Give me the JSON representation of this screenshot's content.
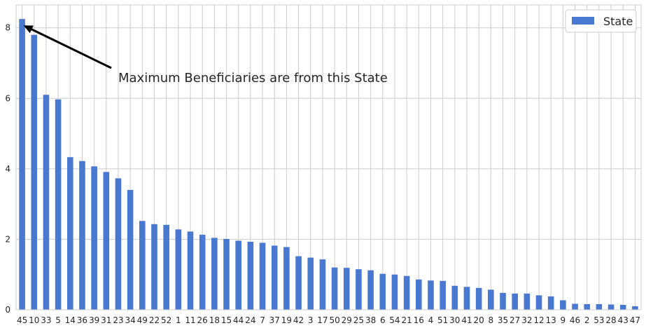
{
  "chart_data": {
    "type": "bar",
    "categories": [
      "45",
      "10",
      "33",
      "5",
      "14",
      "36",
      "39",
      "31",
      "23",
      "34",
      "49",
      "22",
      "52",
      "1",
      "11",
      "26",
      "18",
      "15",
      "44",
      "24",
      "7",
      "37",
      "19",
      "42",
      "3",
      "17",
      "50",
      "29",
      "25",
      "38",
      "6",
      "54",
      "21",
      "16",
      "4",
      "51",
      "30",
      "41",
      "20",
      "8",
      "35",
      "27",
      "32",
      "12",
      "13",
      "9",
      "46",
      "2",
      "53",
      "28",
      "43",
      "47"
    ],
    "series": [
      {
        "name": "State",
        "color": "#4878cf",
        "values": [
          8.25,
          7.8,
          6.1,
          5.97,
          4.33,
          4.22,
          4.07,
          3.91,
          3.73,
          3.4,
          2.52,
          2.43,
          2.41,
          2.28,
          2.22,
          2.13,
          2.04,
          2.01,
          1.96,
          1.93,
          1.9,
          1.82,
          1.78,
          1.52,
          1.48,
          1.43,
          1.2,
          1.19,
          1.15,
          1.12,
          1.02,
          1.0,
          0.96,
          0.86,
          0.83,
          0.82,
          0.68,
          0.65,
          0.62,
          0.57,
          0.48,
          0.46,
          0.46,
          0.41,
          0.38,
          0.27,
          0.17,
          0.16,
          0.16,
          0.15,
          0.14,
          0.1
        ]
      }
    ],
    "ylim": [
      0,
      8.65
    ],
    "yticks": [
      "0",
      "2",
      "4",
      "6",
      "8"
    ],
    "title": "",
    "xlabel": "",
    "ylabel": "",
    "grid": true,
    "legend_position": "top-right",
    "annotation": {
      "text": "Maximum Beneficiaries are from this State",
      "target_category": "45",
      "target_value": 7.95
    }
  }
}
